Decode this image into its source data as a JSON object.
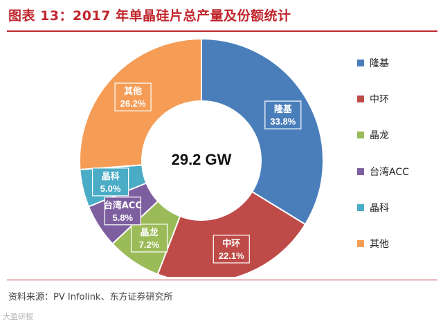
{
  "title": "图表 13：2017 年单晶硅片总产量及份额统计",
  "source": "资料来源：PV Infolink、东方证券研究所",
  "watermark": "大盈研报",
  "chart_data": {
    "type": "pie",
    "donut": true,
    "center_label": "29.2 GW",
    "categories": [
      "隆基",
      "中环",
      "晶龙",
      "台湾ACC",
      "晶科",
      "其他"
    ],
    "values": [
      33.8,
      22.1,
      7.2,
      5.8,
      5.0,
      26.2
    ],
    "value_labels": [
      "33.8%",
      "22.1%",
      "7.2%",
      "5.8%",
      "5.0%",
      "26.2%"
    ],
    "colors": [
      "#4a7ebb",
      "#be4b48",
      "#9bbb59",
      "#7d5fa0",
      "#4bacc6",
      "#f59d56"
    ],
    "legend_position": "right"
  }
}
